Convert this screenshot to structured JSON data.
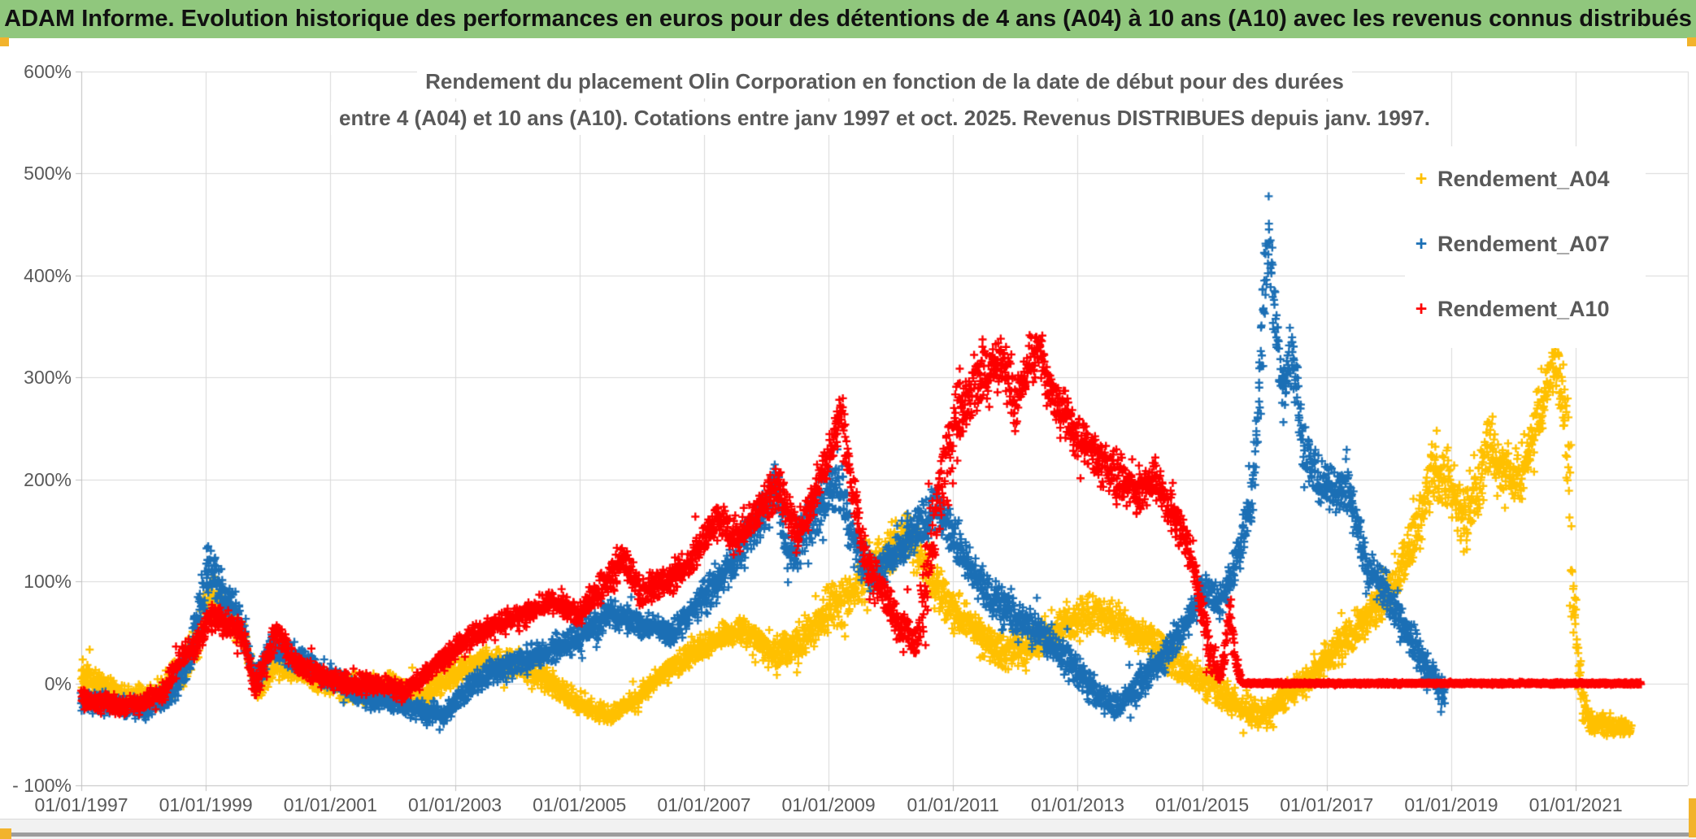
{
  "header": {
    "title": "ADAM Informe. Evolution historique des performances en euros pour des détentions de 4 ans (A04) à 10 ans (A10) avec les revenus connus distribués",
    "bg_color": "#90C77D"
  },
  "colors": {
    "text_gray": "#595959",
    "gridline": "#D9D9D9",
    "axis_line": "#BFBFBF",
    "frame_accent": "#F2B32C",
    "bottom_strip": "#9D9D9D"
  },
  "chart_data": {
    "type": "scatter",
    "title_line1": "Rendement du placement Olin Corporation en fonction de la date de début pour des durées",
    "title_line2": "entre 4 (A04) et 10 ans (A10). Cotations entre janv 1997 et oct. 2025. Revenus DISTRIBUES depuis janv. 1997.",
    "marker": "plus",
    "grid": true,
    "legend_position": "right-top",
    "x_axis": {
      "tick_labels": [
        "01/01/1997",
        "01/01/1999",
        "01/01/2001",
        "01/01/2003",
        "01/01/2005",
        "01/01/2007",
        "01/01/2009",
        "01/01/2011",
        "01/01/2013",
        "01/01/2015",
        "01/01/2017",
        "01/01/2019",
        "01/01/2021"
      ],
      "tick_years": [
        1997,
        1999,
        2001,
        2003,
        2005,
        2007,
        2009,
        2011,
        2013,
        2015,
        2017,
        2019,
        2021
      ],
      "min_year": 1997.0,
      "max_year": 2022.8
    },
    "y_axis": {
      "tick_labels": [
        "600%",
        "500%",
        "400%",
        "300%",
        "200%",
        "100%",
        "0%",
        "- 100%"
      ],
      "tick_values": [
        600,
        500,
        400,
        300,
        200,
        100,
        0,
        -100
      ],
      "min": -100,
      "max": 600,
      "unit": "%"
    },
    "legend": [
      {
        "label": "Rendement_A04",
        "color": "#FFC000"
      },
      {
        "label": "Rendement_A07",
        "color": "#1B6FB5"
      },
      {
        "label": "Rendement_A10",
        "color": "#FE0000"
      }
    ],
    "anchor_format": "[start_date_decimal_year, band_mid_return_pct, band_width_pct]",
    "series": [
      {
        "name": "Rendement_A04",
        "color": "#FFC000",
        "seed": 11,
        "anchors": [
          [
            1997.0,
            10,
            40
          ],
          [
            1997.4,
            -5,
            35
          ],
          [
            1997.8,
            -15,
            30
          ],
          [
            1998.2,
            -12,
            30
          ],
          [
            1998.6,
            10,
            35
          ],
          [
            1998.9,
            50,
            55
          ],
          [
            1999.05,
            88,
            60
          ],
          [
            1999.3,
            70,
            40
          ],
          [
            1999.6,
            45,
            35
          ],
          [
            1999.85,
            -8,
            30
          ],
          [
            2000.1,
            20,
            35
          ],
          [
            2000.5,
            10,
            30
          ],
          [
            2001.0,
            0,
            32
          ],
          [
            2001.5,
            -8,
            32
          ],
          [
            2002.0,
            -2,
            32
          ],
          [
            2002.5,
            -12,
            30
          ],
          [
            2003.0,
            10,
            30
          ],
          [
            2003.5,
            25,
            28
          ],
          [
            2004.0,
            18,
            32
          ],
          [
            2004.5,
            2,
            32
          ],
          [
            2005.0,
            -20,
            28
          ],
          [
            2005.5,
            -33,
            22
          ],
          [
            2005.9,
            -15,
            28
          ],
          [
            2006.3,
            8,
            28
          ],
          [
            2006.8,
            28,
            28
          ],
          [
            2007.3,
            48,
            32
          ],
          [
            2007.7,
            52,
            35
          ],
          [
            2008.1,
            30,
            45
          ],
          [
            2008.5,
            38,
            45
          ],
          [
            2009.0,
            70,
            55
          ],
          [
            2009.5,
            100,
            60
          ],
          [
            2010.0,
            132,
            60
          ],
          [
            2010.3,
            148,
            58
          ],
          [
            2010.7,
            95,
            55
          ],
          [
            2011.2,
            60,
            48
          ],
          [
            2011.7,
            35,
            45
          ],
          [
            2012.2,
            32,
            45
          ],
          [
            2012.7,
            52,
            45
          ],
          [
            2013.2,
            70,
            42
          ],
          [
            2013.7,
            58,
            45
          ],
          [
            2014.2,
            40,
            42
          ],
          [
            2014.7,
            15,
            45
          ],
          [
            2015.2,
            -5,
            40
          ],
          [
            2015.7,
            -25,
            35
          ],
          [
            2016.0,
            -30,
            35
          ],
          [
            2016.4,
            -10,
            38
          ],
          [
            2016.8,
            12,
            40
          ],
          [
            2017.2,
            35,
            45
          ],
          [
            2017.6,
            62,
            48
          ],
          [
            2018.0,
            92,
            55
          ],
          [
            2018.4,
            142,
            65
          ],
          [
            2018.75,
            215,
            95
          ],
          [
            2019.0,
            190,
            70
          ],
          [
            2019.2,
            160,
            95
          ],
          [
            2019.4,
            180,
            70
          ],
          [
            2019.6,
            235,
            85
          ],
          [
            2019.9,
            205,
            70
          ],
          [
            2020.1,
            200,
            70
          ],
          [
            2020.4,
            262,
            75
          ],
          [
            2020.65,
            312,
            45
          ],
          [
            2020.8,
            280,
            90
          ],
          [
            2020.88,
            220,
            220
          ],
          [
            2020.95,
            95,
            110
          ],
          [
            2021.1,
            -15,
            60
          ],
          [
            2021.25,
            -40,
            28
          ],
          [
            2021.9,
            -45,
            20
          ]
        ]
      },
      {
        "name": "Rendement_A07",
        "color": "#1B6FB5",
        "seed": 22,
        "anchors": [
          [
            1997.0,
            -15,
            28
          ],
          [
            1997.5,
            -22,
            26
          ],
          [
            1998.0,
            -25,
            24
          ],
          [
            1998.4,
            -12,
            26
          ],
          [
            1998.7,
            15,
            38
          ],
          [
            1998.95,
            85,
            70
          ],
          [
            1999.05,
            118,
            62
          ],
          [
            1999.3,
            85,
            45
          ],
          [
            1999.55,
            65,
            40
          ],
          [
            1999.8,
            0,
            35
          ],
          [
            2000.05,
            38,
            35
          ],
          [
            2000.4,
            28,
            32
          ],
          [
            2001.0,
            5,
            30
          ],
          [
            2001.5,
            -12,
            28
          ],
          [
            2002.0,
            -18,
            28
          ],
          [
            2002.5,
            -28,
            26
          ],
          [
            2002.8,
            -32,
            24
          ],
          [
            2003.2,
            -5,
            30
          ],
          [
            2003.6,
            12,
            30
          ],
          [
            2004.0,
            20,
            30
          ],
          [
            2004.5,
            32,
            30
          ],
          [
            2005.0,
            45,
            32
          ],
          [
            2005.5,
            68,
            36
          ],
          [
            2006.0,
            58,
            35
          ],
          [
            2006.5,
            50,
            32
          ],
          [
            2007.0,
            85,
            40
          ],
          [
            2007.5,
            118,
            46
          ],
          [
            2008.0,
            172,
            55
          ],
          [
            2008.15,
            198,
            62
          ],
          [
            2008.35,
            122,
            50
          ],
          [
            2008.7,
            155,
            55
          ],
          [
            2009.0,
            188,
            60
          ],
          [
            2009.15,
            200,
            68
          ],
          [
            2009.4,
            140,
            52
          ],
          [
            2009.7,
            105,
            46
          ],
          [
            2010.0,
            122,
            50
          ],
          [
            2010.4,
            150,
            52
          ],
          [
            2010.75,
            172,
            55
          ],
          [
            2011.0,
            145,
            52
          ],
          [
            2011.4,
            102,
            48
          ],
          [
            2011.8,
            72,
            46
          ],
          [
            2012.2,
            58,
            45
          ],
          [
            2012.6,
            38,
            42
          ],
          [
            2013.0,
            12,
            40
          ],
          [
            2013.4,
            -15,
            34
          ],
          [
            2013.65,
            -25,
            30
          ],
          [
            2014.0,
            0,
            36
          ],
          [
            2014.4,
            28,
            40
          ],
          [
            2014.8,
            62,
            42
          ],
          [
            2015.05,
            95,
            46
          ],
          [
            2015.3,
            78,
            42
          ],
          [
            2015.6,
            128,
            52
          ],
          [
            2015.85,
            210,
            80
          ],
          [
            2016.0,
            395,
            150
          ],
          [
            2016.08,
            438,
            70
          ],
          [
            2016.2,
            330,
            110
          ],
          [
            2016.32,
            285,
            90
          ],
          [
            2016.45,
            332,
            85
          ],
          [
            2016.6,
            235,
            80
          ],
          [
            2016.9,
            196,
            62
          ],
          [
            2017.15,
            186,
            60
          ],
          [
            2017.35,
            196,
            66
          ],
          [
            2017.6,
            118,
            52
          ],
          [
            2018.0,
            86,
            48
          ],
          [
            2018.3,
            48,
            46
          ],
          [
            2018.6,
            12,
            40
          ],
          [
            2018.9,
            -8,
            38
          ]
        ]
      },
      {
        "name": "Rendement_A10",
        "color": "#FE0000",
        "seed": 33,
        "anchors": [
          [
            1997.0,
            -15,
            26
          ],
          [
            1997.5,
            -22,
            24
          ],
          [
            1998.0,
            -20,
            24
          ],
          [
            1998.3,
            -10,
            26
          ],
          [
            1998.6,
            25,
            30
          ],
          [
            1998.9,
            40,
            30
          ],
          [
            1999.1,
            70,
            45
          ],
          [
            1999.35,
            55,
            35
          ],
          [
            1999.6,
            50,
            35
          ],
          [
            1999.8,
            -5,
            30
          ],
          [
            2000.0,
            25,
            35
          ],
          [
            2000.15,
            50,
            35
          ],
          [
            2000.4,
            22,
            30
          ],
          [
            2000.8,
            8,
            26
          ],
          [
            2001.3,
            0,
            26
          ],
          [
            2001.8,
            -2,
            26
          ],
          [
            2002.2,
            -8,
            24
          ],
          [
            2002.6,
            12,
            26
          ],
          [
            2003.0,
            33,
            28
          ],
          [
            2003.4,
            50,
            28
          ],
          [
            2003.8,
            60,
            28
          ],
          [
            2004.2,
            70,
            28
          ],
          [
            2004.6,
            80,
            30
          ],
          [
            2005.0,
            68,
            30
          ],
          [
            2005.4,
            98,
            34
          ],
          [
            2005.7,
            122,
            40
          ],
          [
            2006.0,
            88,
            36
          ],
          [
            2006.4,
            100,
            34
          ],
          [
            2006.8,
            120,
            36
          ],
          [
            2007.2,
            160,
            48
          ],
          [
            2007.5,
            145,
            44
          ],
          [
            2007.9,
            170,
            46
          ],
          [
            2008.2,
            196,
            56
          ],
          [
            2008.5,
            145,
            48
          ],
          [
            2008.8,
            190,
            52
          ],
          [
            2009.0,
            222,
            60
          ],
          [
            2009.2,
            265,
            62
          ],
          [
            2009.35,
            200,
            55
          ],
          [
            2009.6,
            122,
            48
          ],
          [
            2009.9,
            85,
            45
          ],
          [
            2010.15,
            55,
            45
          ],
          [
            2010.4,
            38,
            45
          ],
          [
            2010.6,
            110,
            130
          ],
          [
            2010.8,
            195,
            130
          ],
          [
            2011.0,
            250,
            95
          ],
          [
            2011.2,
            280,
            80
          ],
          [
            2011.5,
            300,
            75
          ],
          [
            2011.8,
            318,
            70
          ],
          [
            2012.0,
            275,
            65
          ],
          [
            2012.25,
            315,
            65
          ],
          [
            2012.4,
            330,
            60
          ],
          [
            2012.55,
            285,
            60
          ],
          [
            2012.8,
            260,
            60
          ],
          [
            2013.1,
            240,
            62
          ],
          [
            2013.4,
            218,
            58
          ],
          [
            2013.7,
            200,
            56
          ],
          [
            2014.0,
            188,
            54
          ],
          [
            2014.25,
            202,
            54
          ],
          [
            2014.5,
            168,
            52
          ],
          [
            2014.8,
            132,
            50
          ],
          [
            2015.0,
            72,
            46
          ],
          [
            2015.15,
            25,
            38
          ],
          [
            2015.3,
            10,
            26
          ],
          [
            2015.45,
            68,
            46
          ],
          [
            2015.55,
            18,
            30
          ],
          [
            2015.65,
            0,
            3
          ],
          [
            2022.05,
            0,
            3
          ]
        ]
      }
    ]
  }
}
